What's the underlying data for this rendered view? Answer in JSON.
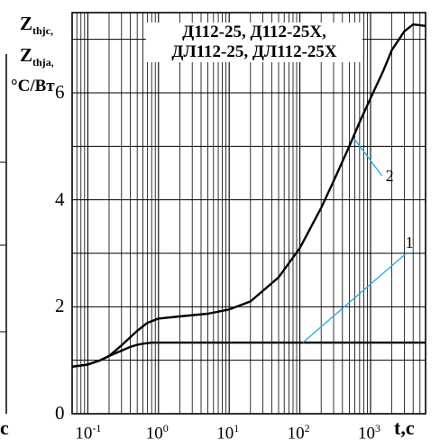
{
  "chart_data": {
    "type": "line",
    "title_lines": [
      "Д112-25, Д112-25Х,",
      "ДЛ112-25, ДЛ112-25Х"
    ],
    "ylabel": {
      "z1": "Z",
      "z1_sub": "thjc,",
      "z2": "Z",
      "z2_sub": "thja,",
      "unit": "°C/Вт"
    },
    "xlabel": "t,c",
    "left_fragment": "c",
    "x_scale": "log",
    "xlim": [
      0.06,
      6000
    ],
    "ylim": [
      0,
      7.5
    ],
    "x_ticks": [
      {
        "base": "10",
        "exp": "-1"
      },
      {
        "base": "10",
        "exp": "0"
      },
      {
        "base": "10",
        "exp": "1"
      },
      {
        "base": "10",
        "exp": "2"
      },
      {
        "base": "10",
        "exp": "3"
      }
    ],
    "y_ticks": [
      0,
      2,
      4,
      6
    ],
    "grid": true,
    "series": [
      {
        "name": "1",
        "x": [
          0.06,
          0.1,
          0.15,
          0.2,
          0.3,
          0.4,
          0.5,
          0.6,
          0.8,
          1,
          10,
          100,
          1000,
          6000
        ],
        "y": [
          0.88,
          0.92,
          1.0,
          1.08,
          1.18,
          1.25,
          1.29,
          1.31,
          1.33,
          1.33,
          1.33,
          1.33,
          1.33,
          1.33
        ]
      },
      {
        "name": "2",
        "x": [
          0.06,
          0.1,
          0.15,
          0.2,
          0.3,
          0.5,
          0.7,
          1,
          2,
          5,
          10,
          20,
          50,
          100,
          200,
          300,
          500,
          700,
          1000,
          1500,
          2000,
          3000,
          4000,
          6000
        ],
        "y": [
          0.88,
          0.92,
          1.0,
          1.08,
          1.28,
          1.55,
          1.7,
          1.78,
          1.82,
          1.87,
          1.95,
          2.1,
          2.55,
          3.1,
          3.85,
          4.35,
          5.0,
          5.45,
          5.9,
          6.4,
          6.8,
          7.15,
          7.28,
          7.25
        ]
      }
    ],
    "annotations": [
      "1",
      "2"
    ]
  }
}
